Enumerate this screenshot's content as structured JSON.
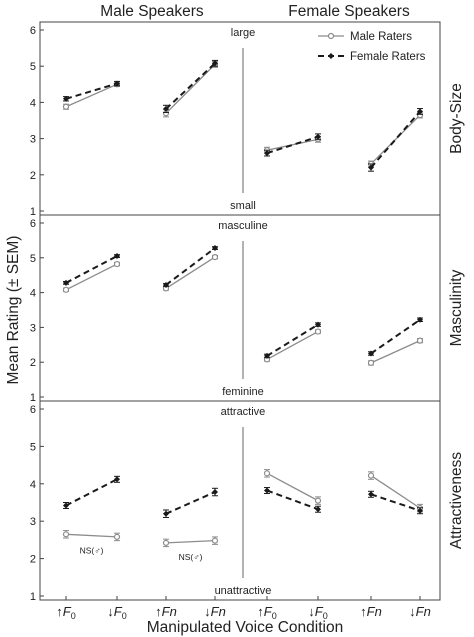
{
  "header": {
    "male_speakers": "Male Speakers",
    "female_speakers": "Female Speakers"
  },
  "chart_data": {
    "type": "line",
    "ylabel": "Mean Rating  (± SEM)",
    "xlabel": "Manipulated Voice Condition",
    "ylim": [
      1,
      6
    ],
    "yticks": [
      "1",
      "2",
      "3",
      "4",
      "5",
      "6"
    ],
    "x_categories": [
      {
        "arrow": "↑",
        "base": "F",
        "sub": "0"
      },
      {
        "arrow": "↓",
        "base": "F",
        "sub": "0"
      },
      {
        "arrow": "↑",
        "base": "Fn",
        "sub": ""
      },
      {
        "arrow": "↓",
        "base": "Fn",
        "sub": ""
      },
      {
        "arrow": "↑",
        "base": "F",
        "sub": "0"
      },
      {
        "arrow": "↓",
        "base": "F",
        "sub": "0"
      },
      {
        "arrow": "↑",
        "base": "Fn",
        "sub": ""
      },
      {
        "arrow": "↓",
        "base": "Fn",
        "sub": ""
      }
    ],
    "legend": {
      "male": "Male Raters",
      "female": "Female Raters"
    },
    "colors": {
      "male": "#8c8c8c",
      "female": "#1a1a1a"
    },
    "panels": [
      {
        "row_label": "Body-Size",
        "top_anchor": "large",
        "bottom_anchor": "small",
        "male_raters": [
          {
            "pair": [
              0,
              1
            ],
            "values": [
              3.88,
              4.5
            ],
            "sem": [
              0.07,
              0.06
            ]
          },
          {
            "pair": [
              2,
              3
            ],
            "values": [
              3.7,
              5.05
            ],
            "sem": [
              0.1,
              0.08
            ]
          },
          {
            "pair": [
              4,
              5
            ],
            "values": [
              2.68,
              2.98
            ],
            "sem": [
              0.08,
              0.08
            ]
          },
          {
            "pair": [
              6,
              7
            ],
            "values": [
              2.3,
              3.65
            ],
            "sem": [
              0.08,
              0.08
            ]
          }
        ],
        "female_raters": [
          {
            "pair": [
              0,
              1
            ],
            "values": [
              4.1,
              4.52
            ],
            "sem": [
              0.06,
              0.06
            ]
          },
          {
            "pair": [
              2,
              3
            ],
            "values": [
              3.82,
              5.08
            ],
            "sem": [
              0.1,
              0.08
            ]
          },
          {
            "pair": [
              4,
              5
            ],
            "values": [
              2.6,
              3.05
            ],
            "sem": [
              0.08,
              0.08
            ]
          },
          {
            "pair": [
              6,
              7
            ],
            "values": [
              2.2,
              3.75
            ],
            "sem": [
              0.1,
              0.08
            ]
          }
        ],
        "notes": []
      },
      {
        "row_label": "Masculinity",
        "top_anchor": "masculine",
        "bottom_anchor": "feminine",
        "male_raters": [
          {
            "pair": [
              0,
              1
            ],
            "values": [
              4.08,
              4.82
            ],
            "sem": [
              0.05,
              0.05
            ]
          },
          {
            "pair": [
              2,
              3
            ],
            "values": [
              4.12,
              5.02
            ],
            "sem": [
              0.05,
              0.05
            ]
          },
          {
            "pair": [
              4,
              5
            ],
            "values": [
              2.08,
              2.88
            ],
            "sem": [
              0.05,
              0.05
            ]
          },
          {
            "pair": [
              6,
              7
            ],
            "values": [
              1.98,
              2.62
            ],
            "sem": [
              0.06,
              0.06
            ]
          }
        ],
        "female_raters": [
          {
            "pair": [
              0,
              1
            ],
            "values": [
              4.28,
              5.05
            ],
            "sem": [
              0.04,
              0.04
            ]
          },
          {
            "pair": [
              2,
              3
            ],
            "values": [
              4.22,
              5.28
            ],
            "sem": [
              0.04,
              0.04
            ]
          },
          {
            "pair": [
              4,
              5
            ],
            "values": [
              2.18,
              3.08
            ],
            "sem": [
              0.05,
              0.05
            ]
          },
          {
            "pair": [
              6,
              7
            ],
            "values": [
              2.25,
              3.22
            ],
            "sem": [
              0.05,
              0.05
            ]
          }
        ],
        "notes": []
      },
      {
        "row_label": "Attractiveness",
        "top_anchor": "attractive",
        "bottom_anchor": "unattractive",
        "male_raters": [
          {
            "pair": [
              0,
              1
            ],
            "values": [
              2.65,
              2.58
            ],
            "sem": [
              0.1,
              0.1
            ]
          },
          {
            "pair": [
              2,
              3
            ],
            "values": [
              2.42,
              2.48
            ],
            "sem": [
              0.1,
              0.1
            ]
          },
          {
            "pair": [
              4,
              5
            ],
            "values": [
              4.28,
              3.55
            ],
            "sem": [
              0.1,
              0.1
            ]
          },
          {
            "pair": [
              6,
              7
            ],
            "values": [
              4.22,
              3.35
            ],
            "sem": [
              0.1,
              0.1
            ]
          }
        ],
        "female_raters": [
          {
            "pair": [
              0,
              1
            ],
            "values": [
              3.42,
              4.12
            ],
            "sem": [
              0.08,
              0.08
            ]
          },
          {
            "pair": [
              2,
              3
            ],
            "values": [
              3.2,
              3.78
            ],
            "sem": [
              0.1,
              0.1
            ]
          },
          {
            "pair": [
              4,
              5
            ],
            "values": [
              3.82,
              3.32
            ],
            "sem": [
              0.08,
              0.08
            ]
          },
          {
            "pair": [
              6,
              7
            ],
            "values": [
              3.72,
              3.28
            ],
            "sem": [
              0.08,
              0.08
            ]
          }
        ],
        "notes": [
          {
            "pair_index": 0,
            "text": "NS(♂)"
          },
          {
            "pair_index": 1,
            "text": "NS(♂)"
          }
        ]
      }
    ]
  }
}
